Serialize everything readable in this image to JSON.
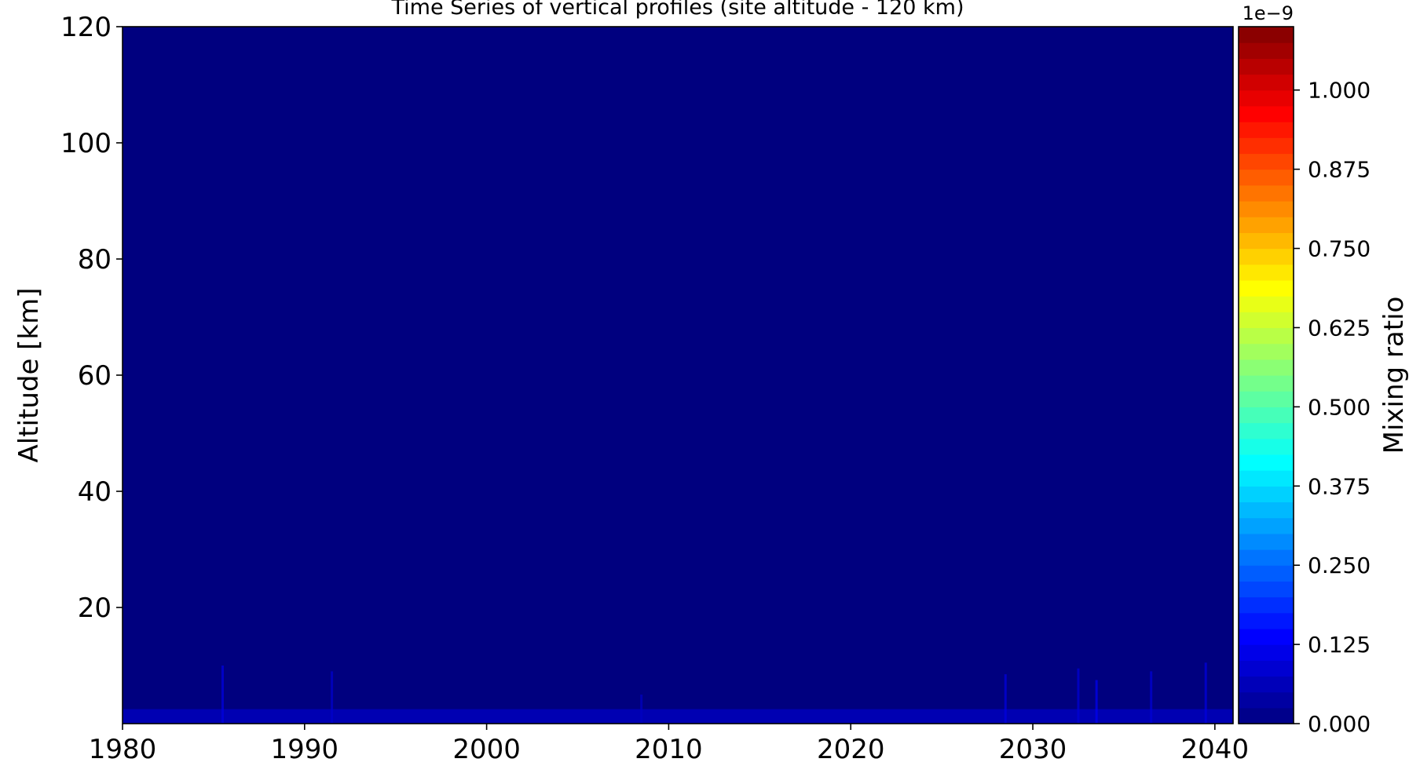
{
  "chart_data": {
    "type": "heatmap",
    "title": "Time Series of vertical profiles (site altitude - 120 km)",
    "xlabel": "",
    "ylabel": "Altitude [km]",
    "xlim": [
      1980,
      2041
    ],
    "ylim": [
      0,
      120
    ],
    "x_ticks": [
      1980,
      1990,
      2000,
      2010,
      2020,
      2030,
      2040
    ],
    "y_ticks": [
      20,
      40,
      60,
      80,
      100,
      120
    ],
    "grid": false,
    "colormap": "jet",
    "background_value": 0.0,
    "colorbar": {
      "label": "Mixing ratio",
      "offset_text": "1e−9",
      "range": [
        0.0,
        1.1
      ],
      "ticks": [
        0.0,
        0.125,
        0.25,
        0.375,
        0.5,
        0.625,
        0.75,
        0.875,
        1.0
      ],
      "tick_labels": [
        "0.000",
        "0.125",
        "0.250",
        "0.375",
        "0.500",
        "0.625",
        "0.750",
        "0.875",
        "1.000"
      ],
      "levels": 44
    },
    "features": [
      {
        "year": 1985.5,
        "alt_top": 10,
        "value": 0.1
      },
      {
        "year": 1991.5,
        "alt_top": 9,
        "value": 0.08
      },
      {
        "year": 2008.5,
        "alt_top": 5,
        "value": 0.07
      },
      {
        "year": 2028.5,
        "alt_top": 8.5,
        "value": 0.1
      },
      {
        "year": 2032.5,
        "alt_top": 9.5,
        "value": 0.09
      },
      {
        "year": 2033.5,
        "alt_top": 7.5,
        "value": 0.12
      },
      {
        "year": 2036.5,
        "alt_top": 9,
        "value": 0.09
      },
      {
        "year": 2039.5,
        "alt_top": 10.5,
        "value": 0.1
      }
    ],
    "surface_layer": {
      "alt_top": 2.5,
      "value": 0.1
    }
  }
}
